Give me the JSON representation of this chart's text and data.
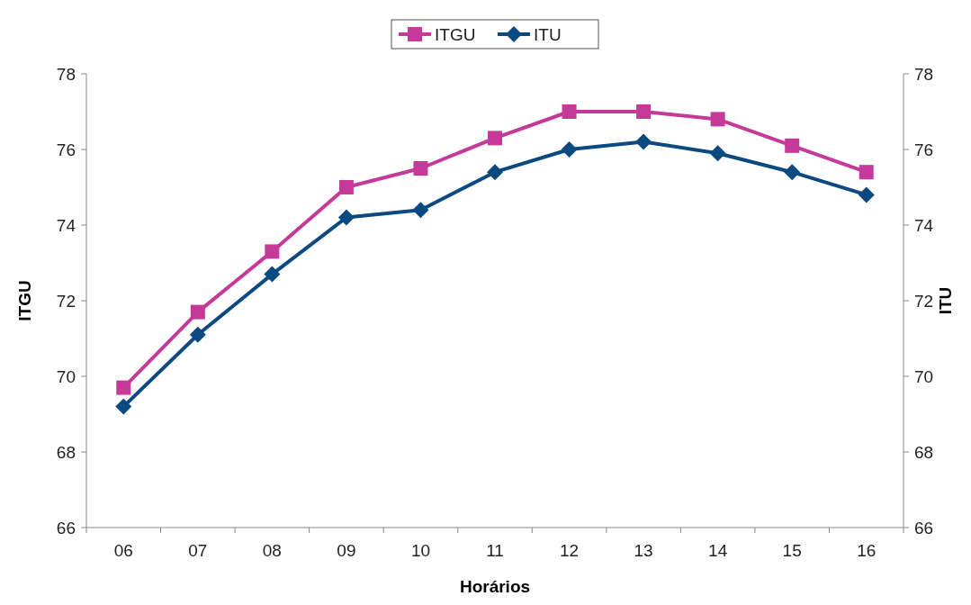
{
  "chart_data": {
    "type": "line",
    "xlabel": "Horários",
    "ylabel": "ITGU",
    "y2label": "ITU",
    "categories": [
      "06",
      "07",
      "08",
      "09",
      "10",
      "11",
      "12",
      "13",
      "14",
      "15",
      "16"
    ],
    "series": [
      {
        "name": "ITGU",
        "color": "#c53a98",
        "marker": "square",
        "values": [
          69.7,
          71.7,
          73.3,
          75.0,
          75.5,
          76.3,
          77.0,
          77.0,
          76.8,
          76.1,
          75.4
        ]
      },
      {
        "name": "ITU",
        "color": "#0b4a80",
        "marker": "diamond",
        "axis": "y2",
        "values": [
          69.2,
          71.1,
          72.7,
          74.2,
          74.4,
          75.4,
          76.0,
          76.2,
          75.9,
          75.4,
          74.8
        ]
      }
    ],
    "ylim": [
      66,
      78
    ],
    "yticks": [
      66,
      68,
      70,
      72,
      74,
      76,
      78
    ],
    "y2lim": [
      66,
      78
    ],
    "y2ticks": [
      66,
      68,
      70,
      72,
      74,
      76,
      78
    ],
    "legend": "top",
    "grid": false
  }
}
